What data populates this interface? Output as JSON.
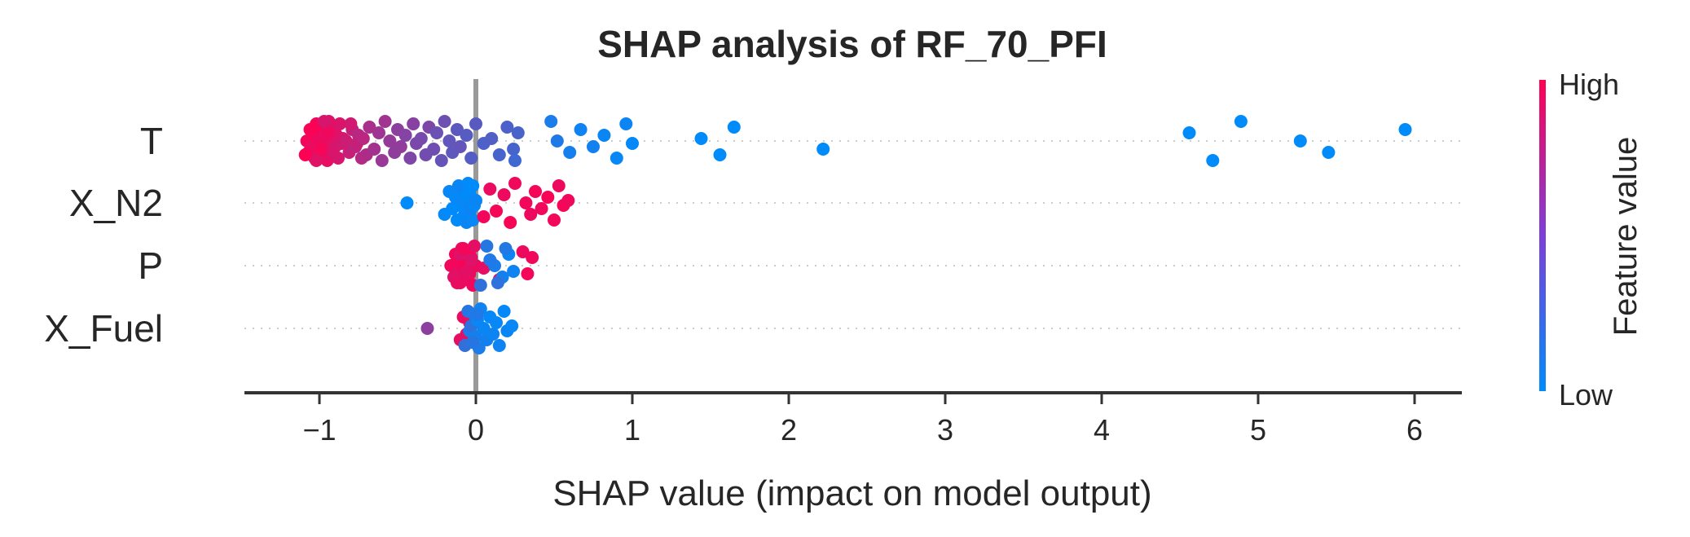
{
  "chart_data": {
    "type": "scatter",
    "title": "SHAP analysis of RF_70_PFI",
    "xlabel": "SHAP value (impact on model output)",
    "xlim": [
      -1.5,
      6.3
    ],
    "xticks": [
      -1,
      0,
      1,
      2,
      3,
      4,
      5,
      6
    ],
    "xtick_labels": [
      "−1",
      "0",
      "1",
      "2",
      "3",
      "4",
      "5",
      "6"
    ],
    "features": [
      "T",
      "X_N2",
      "P",
      "X_Fuel"
    ],
    "colorbar": {
      "title": "Feature value",
      "high_label": "High",
      "low_label": "Low",
      "high_color": "#ff0052",
      "low_color": "#008bfb"
    },
    "series": [
      {
        "name": "T",
        "points": [
          [
            -1.08,
            0.95
          ],
          [
            -1.07,
            0.93
          ],
          [
            -1.06,
            0.97
          ],
          [
            -1.05,
            0.92
          ],
          [
            -1.04,
            0.96
          ],
          [
            -1.03,
            0.9
          ],
          [
            -1.02,
            0.94
          ],
          [
            -1.01,
            0.91
          ],
          [
            -1.0,
            0.93
          ],
          [
            -0.99,
            0.89
          ],
          [
            -0.98,
            0.92
          ],
          [
            -0.97,
            0.95
          ],
          [
            -0.96,
            0.88
          ],
          [
            -0.95,
            0.91
          ],
          [
            -0.94,
            0.87
          ],
          [
            -0.93,
            0.9
          ],
          [
            -0.92,
            0.86
          ],
          [
            -0.91,
            0.89
          ],
          [
            -0.9,
            0.85
          ],
          [
            -0.89,
            0.88
          ],
          [
            -0.88,
            0.84
          ],
          [
            -0.87,
            0.86
          ],
          [
            -0.86,
            0.82
          ],
          [
            -0.85,
            0.85
          ],
          [
            -1.09,
            0.99
          ],
          [
            -1.03,
            0.98
          ],
          [
            -0.99,
            0.96
          ],
          [
            -0.95,
            0.94
          ],
          [
            -1.02,
            0.88
          ],
          [
            -0.97,
            0.84
          ],
          [
            -0.83,
            0.8
          ],
          [
            -0.81,
            0.78
          ],
          [
            -0.79,
            0.76
          ],
          [
            -0.77,
            0.74
          ],
          [
            -0.75,
            0.72
          ],
          [
            -0.73,
            0.7
          ],
          [
            -0.8,
            0.82
          ],
          [
            -0.76,
            0.77
          ],
          [
            -0.72,
            0.73
          ],
          [
            -0.7,
            0.68
          ],
          [
            -0.68,
            0.66
          ],
          [
            -0.65,
            0.64
          ],
          [
            -0.62,
            0.62
          ],
          [
            -0.6,
            0.6
          ],
          [
            -0.58,
            0.63
          ],
          [
            -0.55,
            0.58
          ],
          [
            -0.52,
            0.56
          ],
          [
            -0.5,
            0.55
          ],
          [
            -0.48,
            0.57
          ],
          [
            -0.45,
            0.52
          ],
          [
            -0.42,
            0.5
          ],
          [
            -0.4,
            0.53
          ],
          [
            -0.38,
            0.48
          ],
          [
            -0.35,
            0.47
          ],
          [
            -0.32,
            0.45
          ],
          [
            -0.3,
            0.49
          ],
          [
            -0.27,
            0.44
          ],
          [
            -0.25,
            0.42
          ],
          [
            -0.22,
            0.4
          ],
          [
            -0.2,
            0.43
          ],
          [
            -0.17,
            0.38
          ],
          [
            -0.15,
            0.37
          ],
          [
            -0.12,
            0.36
          ],
          [
            -0.1,
            0.39
          ],
          [
            -0.06,
            0.34
          ],
          [
            -0.03,
            0.33
          ],
          [
            0.0,
            0.35
          ],
          [
            0.05,
            0.3
          ],
          [
            0.1,
            0.32
          ],
          [
            0.15,
            0.28
          ],
          [
            0.2,
            0.3
          ],
          [
            0.24,
            0.27
          ],
          [
            0.27,
            0.29
          ],
          [
            0.25,
            0.25
          ],
          [
            0.48,
            0.1
          ],
          [
            0.52,
            0.12
          ],
          [
            0.6,
            0.08
          ],
          [
            0.67,
            0.06
          ],
          [
            0.75,
            0.07
          ],
          [
            0.82,
            0.04
          ],
          [
            0.9,
            0.03
          ],
          [
            0.96,
            0.05
          ],
          [
            1.0,
            0.02
          ],
          [
            1.44,
            0.0
          ],
          [
            1.56,
            0.0
          ],
          [
            1.65,
            0.0
          ],
          [
            2.22,
            0.0
          ],
          [
            4.56,
            0.0
          ],
          [
            4.71,
            0.0
          ],
          [
            4.89,
            0.0
          ],
          [
            5.27,
            0.0
          ],
          [
            5.45,
            0.0
          ],
          [
            5.94,
            0.0
          ]
        ]
      },
      {
        "name": "X_N2",
        "points": [
          [
            -0.44,
            0.0
          ],
          [
            -0.2,
            0.02
          ],
          [
            -0.17,
            0.03
          ],
          [
            -0.15,
            0.0
          ],
          [
            -0.13,
            0.02
          ],
          [
            -0.12,
            0.01
          ],
          [
            -0.11,
            0.04
          ],
          [
            -0.1,
            0.0
          ],
          [
            -0.09,
            0.03
          ],
          [
            -0.08,
            0.01
          ],
          [
            -0.08,
            0.05
          ],
          [
            -0.07,
            0.02
          ],
          [
            -0.06,
            0.0
          ],
          [
            -0.06,
            0.04
          ],
          [
            -0.05,
            0.01
          ],
          [
            -0.05,
            0.03
          ],
          [
            -0.04,
            0.02
          ],
          [
            -0.04,
            0.0
          ],
          [
            -0.03,
            0.05
          ],
          [
            -0.03,
            0.01
          ],
          [
            -0.02,
            0.03
          ],
          [
            -0.02,
            0.0
          ],
          [
            -0.01,
            0.02
          ],
          [
            0.0,
            0.04
          ],
          [
            0.05,
            0.95
          ],
          [
            0.09,
            0.92
          ],
          [
            0.13,
            0.96
          ],
          [
            0.18,
            0.93
          ],
          [
            0.22,
            0.97
          ],
          [
            0.25,
            0.94
          ],
          [
            0.32,
            0.95
          ],
          [
            0.35,
            0.93
          ],
          [
            0.38,
            0.96
          ],
          [
            0.42,
            0.94
          ],
          [
            0.46,
            0.97
          ],
          [
            0.5,
            0.95
          ],
          [
            0.53,
            0.93
          ],
          [
            0.56,
            0.96
          ],
          [
            0.59,
            0.94
          ]
        ]
      },
      {
        "name": "P",
        "points": [
          [
            -0.16,
            0.95
          ],
          [
            -0.14,
            0.93
          ],
          [
            -0.13,
            0.97
          ],
          [
            -0.12,
            0.92
          ],
          [
            -0.11,
            0.96
          ],
          [
            -0.1,
            0.94
          ],
          [
            -0.09,
            0.9
          ],
          [
            -0.08,
            0.93
          ],
          [
            -0.07,
            0.97
          ],
          [
            -0.06,
            0.91
          ],
          [
            -0.05,
            0.95
          ],
          [
            -0.04,
            0.92
          ],
          [
            -0.03,
            0.96
          ],
          [
            -0.02,
            0.94
          ],
          [
            -0.01,
            0.9
          ],
          [
            0.0,
            0.93
          ],
          [
            -0.14,
            0.88
          ],
          [
            -0.1,
            0.86
          ],
          [
            -0.06,
            0.89
          ],
          [
            -0.03,
            0.87
          ],
          [
            -0.12,
            0.91
          ],
          [
            -0.08,
            0.95
          ],
          [
            0.05,
            0.9
          ],
          [
            0.1,
            0.88
          ],
          [
            0.15,
            0.92
          ],
          [
            0.3,
            0.93
          ],
          [
            0.33,
            0.96
          ],
          [
            0.36,
            0.94
          ],
          [
            0.03,
            0.2
          ],
          [
            0.07,
            0.15
          ],
          [
            0.12,
            0.1
          ],
          [
            0.17,
            0.08
          ],
          [
            0.21,
            0.05
          ],
          [
            0.24,
            0.06
          ],
          [
            0.09,
            0.12
          ],
          [
            0.14,
            0.18
          ],
          [
            0.19,
            0.14
          ]
        ]
      },
      {
        "name": "X_Fuel",
        "points": [
          [
            -0.31,
            0.55
          ],
          [
            -0.1,
            0.9
          ],
          [
            -0.08,
            0.92
          ],
          [
            -0.06,
            0.88
          ],
          [
            -0.04,
            0.9
          ],
          [
            -0.07,
            0.2
          ],
          [
            -0.05,
            0.15
          ],
          [
            -0.04,
            0.1
          ],
          [
            -0.03,
            0.18
          ],
          [
            -0.02,
            0.05
          ],
          [
            -0.01,
            0.12
          ],
          [
            0.0,
            0.08
          ],
          [
            0.01,
            0.03
          ],
          [
            0.02,
            0.1
          ],
          [
            0.03,
            0.06
          ],
          [
            0.05,
            0.04
          ],
          [
            0.07,
            0.08
          ],
          [
            0.09,
            0.02
          ],
          [
            0.11,
            0.05
          ],
          [
            0.13,
            0.03
          ],
          [
            0.15,
            0.06
          ],
          [
            0.18,
            0.02
          ],
          [
            0.2,
            0.04
          ],
          [
            0.23,
            0.03
          ],
          [
            -0.02,
            0.15
          ],
          [
            0.01,
            0.12
          ]
        ]
      }
    ]
  }
}
